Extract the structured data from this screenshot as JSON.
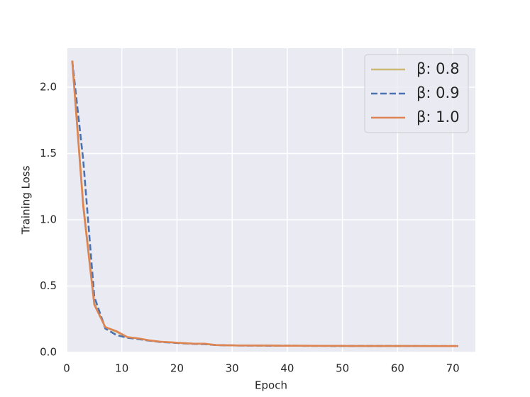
{
  "chart_data": {
    "type": "line",
    "x_label": "Epoch",
    "y_label": "Training Loss",
    "x": [
      1,
      3,
      5,
      7,
      9,
      11,
      13,
      15,
      17,
      19,
      21,
      23,
      25,
      27,
      29,
      31,
      33,
      35,
      37,
      39,
      41,
      43,
      45,
      47,
      49,
      51,
      53,
      55,
      57,
      59,
      61,
      63,
      65,
      67,
      69,
      71
    ],
    "series": [
      {
        "name": "β: 0.8",
        "color": "#ccb974",
        "linestyle": "solid",
        "values": [
          2.2,
          1.12,
          0.37,
          0.19,
          0.155,
          0.115,
          0.105,
          0.09,
          0.08,
          0.075,
          0.07,
          0.065,
          0.064,
          0.055,
          0.053,
          0.052,
          0.052,
          0.051,
          0.051,
          0.05,
          0.05,
          0.05,
          0.049,
          0.049,
          0.049,
          0.048,
          0.048,
          0.048,
          0.048,
          0.048,
          0.048,
          0.048,
          0.047,
          0.047,
          0.047,
          0.047
        ]
      },
      {
        "name": "β: 0.9",
        "color": "#4c72b0",
        "linestyle": "dashed",
        "values": [
          2.2,
          1.45,
          0.42,
          0.18,
          0.13,
          0.11,
          0.1,
          0.088,
          0.078,
          0.073,
          0.068,
          0.064,
          0.062,
          0.055,
          0.053,
          0.052,
          0.051,
          0.051,
          0.05,
          0.05,
          0.05,
          0.049,
          0.049,
          0.049,
          0.048,
          0.048,
          0.048,
          0.048,
          0.048,
          0.048,
          0.047,
          0.047,
          0.047,
          0.047,
          0.047,
          0.047
        ]
      },
      {
        "name": "β: 1.0",
        "color": "#dd8452",
        "linestyle": "solid",
        "values": [
          2.2,
          1.1,
          0.36,
          0.19,
          0.16,
          0.115,
          0.105,
          0.09,
          0.08,
          0.075,
          0.07,
          0.065,
          0.065,
          0.055,
          0.053,
          0.052,
          0.052,
          0.051,
          0.051,
          0.05,
          0.05,
          0.05,
          0.049,
          0.049,
          0.049,
          0.048,
          0.048,
          0.048,
          0.048,
          0.048,
          0.048,
          0.048,
          0.047,
          0.047,
          0.047,
          0.047
        ]
      }
    ],
    "xlim": [
      0,
      74.1
    ],
    "xticks": [
      0,
      10,
      20,
      30,
      40,
      50,
      60,
      70
    ],
    "ylim": [
      0,
      2.294
    ],
    "yticks": [
      {
        "value": 0,
        "label": "0.0"
      },
      0.5,
      {
        "value": 1,
        "label": "1.0"
      },
      1.5,
      {
        "value": 2,
        "label": "2.0"
      }
    ],
    "grid": true,
    "legend": "upper right"
  }
}
